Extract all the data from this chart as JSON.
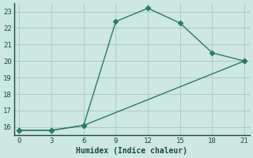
{
  "xlabel": "Humidex (Indice chaleur)",
  "line1_x": [
    0,
    3,
    6,
    9,
    12,
    15,
    18,
    21
  ],
  "line1_y": [
    15.8,
    15.8,
    16.1,
    22.4,
    23.2,
    22.3,
    20.5,
    20.0
  ],
  "line2_x": [
    0,
    3,
    6,
    21
  ],
  "line2_y": [
    15.8,
    15.8,
    16.1,
    20.0
  ],
  "line_color": "#2a7a6a",
  "bg_color": "#cce8e0",
  "grid_color": "#aaccc4",
  "xlim": [
    -0.5,
    21.5
  ],
  "ylim": [
    15.5,
    23.5
  ],
  "xticks": [
    0,
    3,
    6,
    9,
    12,
    15,
    18,
    21
  ],
  "yticks": [
    16,
    17,
    18,
    19,
    20,
    21,
    22,
    23
  ],
  "markersize": 3.5,
  "linewidth": 1.0
}
